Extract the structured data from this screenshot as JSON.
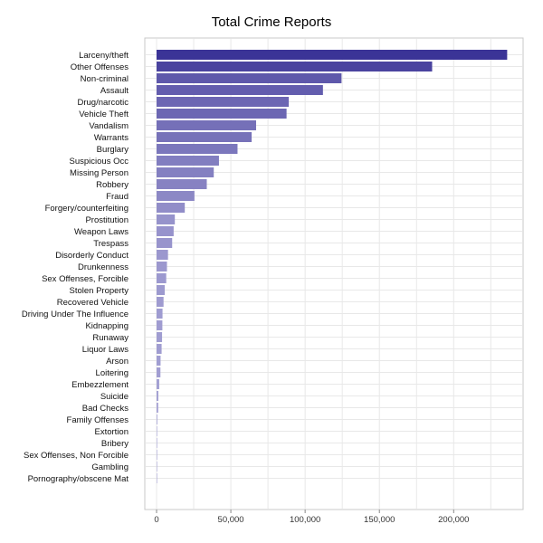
{
  "chart_data": {
    "type": "bar",
    "orientation": "horizontal",
    "title": "Total Crime Reports",
    "xlabel": "",
    "ylabel": "",
    "xlim": [
      0,
      245000
    ],
    "x_ticks": [
      0,
      50000,
      100000,
      150000,
      200000
    ],
    "x_tick_labels": [
      "0",
      "50,000",
      "100,000",
      "150,000",
      "200,000"
    ],
    "grid": true,
    "categories": [
      "Larceny/theft",
      "Other Offenses",
      "Non-criminal",
      "Assault",
      "Drug/narcotic",
      "Vehicle Theft",
      "Vandalism",
      "Warrants",
      "Burglary",
      "Suspicious Occ",
      "Missing Person",
      "Robbery",
      "Fraud",
      "Forgery/counterfeiting",
      "Prostitution",
      "Weapon Laws",
      "Trespass",
      "Disorderly Conduct",
      "Drunkenness",
      "Sex Offenses, Forcible",
      "Stolen Property",
      "Recovered Vehicle",
      "Driving Under The Influence",
      "Kidnapping",
      "Runaway",
      "Liquor Laws",
      "Arson",
      "Loitering",
      "Embezzlement",
      "Suicide",
      "Bad Checks",
      "Family Offenses",
      "Extortion",
      "Bribery",
      "Sex Offenses, Non Forcible",
      "Gambling",
      "Pornography/obscene Mat"
    ],
    "values": [
      236000,
      185500,
      124500,
      112000,
      89000,
      87500,
      67000,
      64000,
      54500,
      42000,
      38500,
      33800,
      25500,
      19000,
      12300,
      11500,
      10500,
      7700,
      7000,
      6500,
      5500,
      4700,
      4000,
      3900,
      3700,
      3400,
      2700,
      2600,
      1800,
      1200,
      1100,
      500,
      300,
      200,
      200,
      150,
      30
    ],
    "bar_color_max": "#3b3497",
    "bar_color_min": "#a9a6d6",
    "grid_color": "#e8e8e8",
    "frame_color": "#c8c8c8"
  }
}
